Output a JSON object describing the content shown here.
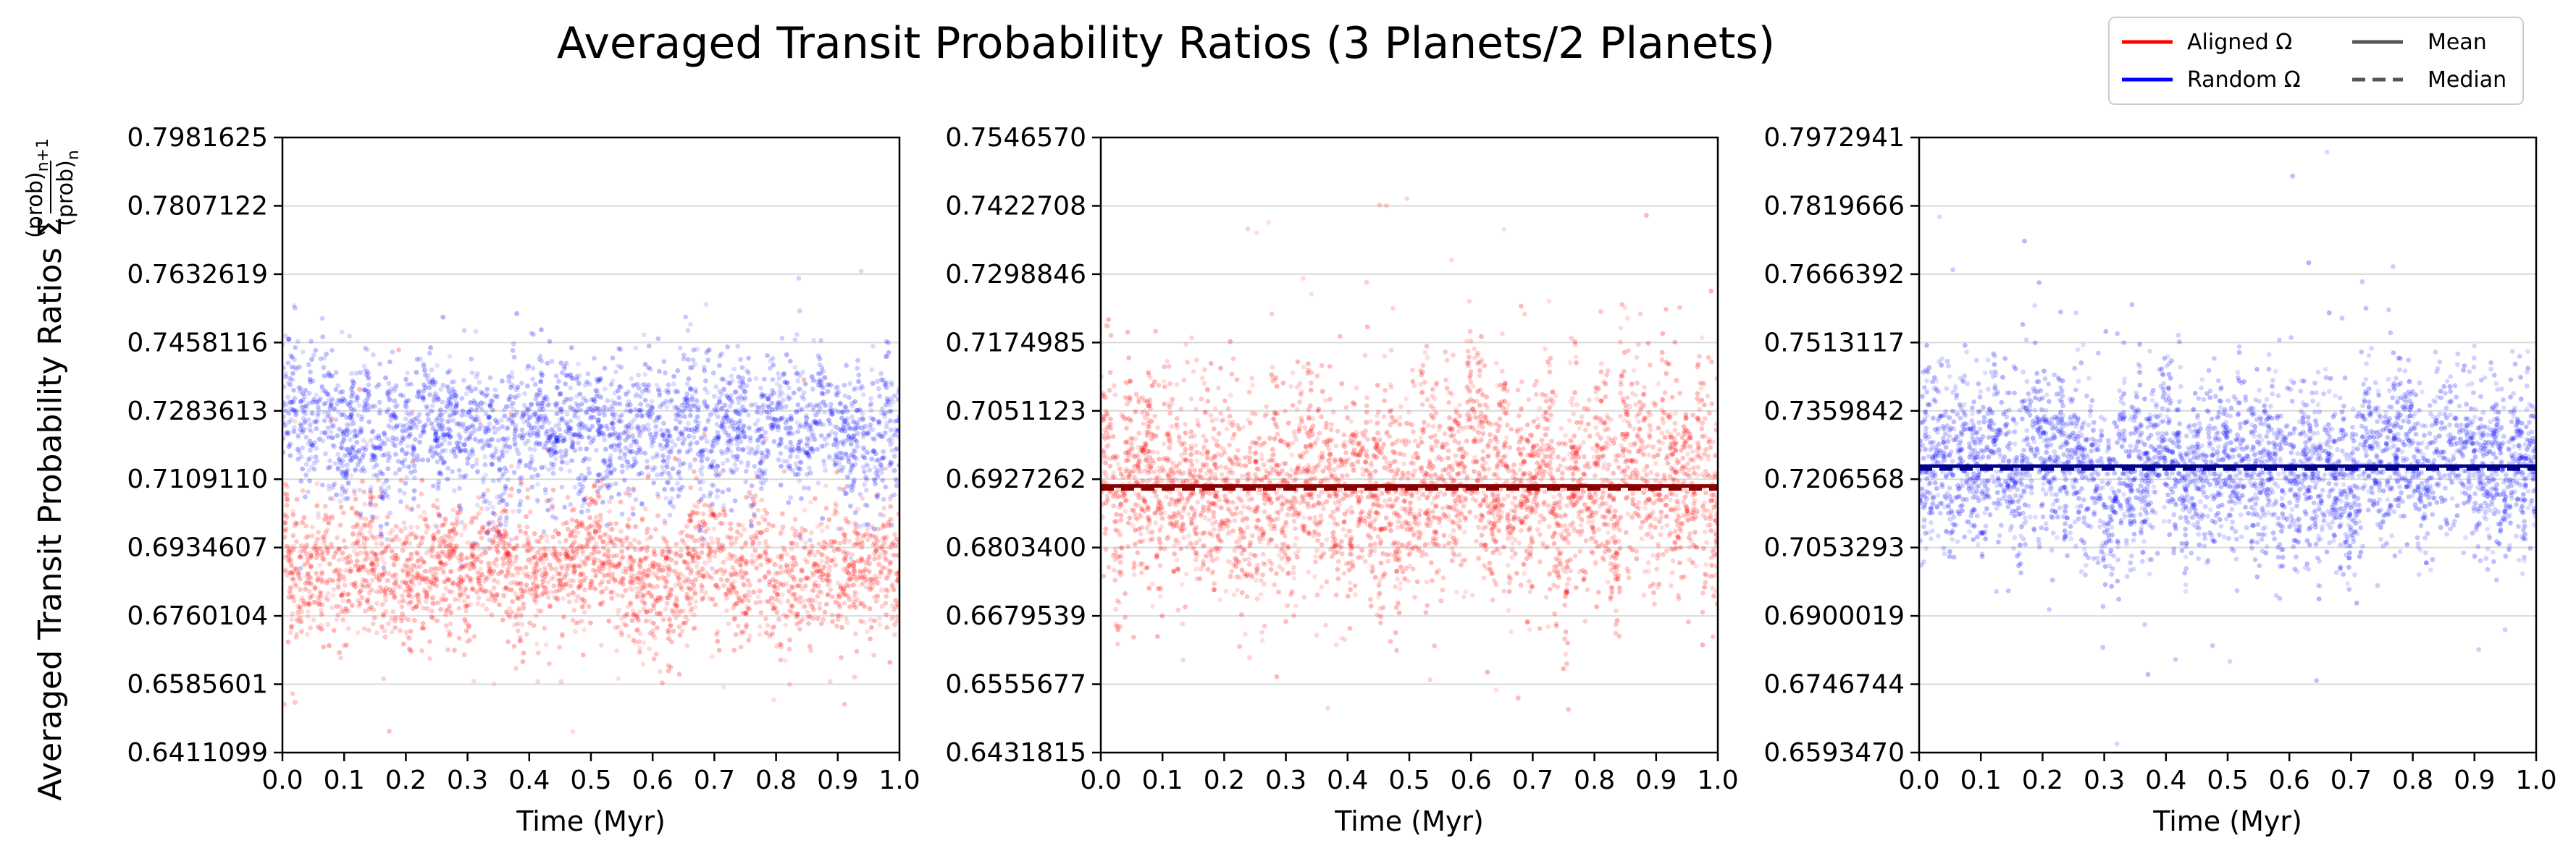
{
  "figure": {
    "title": "Averaged Transit Probability Ratios (3 Planets/2 Planets)",
    "ylabel_prefix": "Averaged Transit Probability Ratios Σ",
    "ylabel_numerator": "(prob)",
    "ylabel_numerator_sub": "n+1",
    "ylabel_denominator": "(prob)",
    "ylabel_denominator_sub": "n"
  },
  "legend": {
    "placement": "top-right",
    "entries": [
      {
        "label": "Aligned Ω",
        "color": "#ff0000",
        "style": "solid"
      },
      {
        "label": "Mean",
        "color": "#555555",
        "style": "solid"
      },
      {
        "label": "Random Ω",
        "color": "#0000ff",
        "style": "solid"
      },
      {
        "label": "Median",
        "color": "#555555",
        "style": "dashed"
      }
    ]
  },
  "colors": {
    "aligned": "#ff0000",
    "random": "#0000ff",
    "aligned_line": "#8b0000",
    "random_line": "#00008b",
    "grid": "#d9d9d9"
  },
  "chart_data": [
    {
      "type": "scatter",
      "xlabel": "Time (Myr)",
      "xlim": [
        0.0,
        1.0
      ],
      "xticks": [
        "0.0",
        "0.1",
        "0.2",
        "0.3",
        "0.4",
        "0.5",
        "0.6",
        "0.7",
        "0.8",
        "0.9",
        "1.0"
      ],
      "ylim": [
        0.6411099,
        0.7981625
      ],
      "yticks": [
        "0.6411099",
        "0.6585601",
        "0.6760104",
        "0.6934607",
        "0.7109110",
        "0.7283613",
        "0.7458116",
        "0.7632619",
        "0.7807122",
        "0.7981625"
      ],
      "grid": "horizontal",
      "series": [
        {
          "name": "Aligned Ω",
          "color": "#ff0000",
          "center": 0.688,
          "spread": 0.0085,
          "mean": 0.688,
          "median": 0.688,
          "n_points": 2600
        },
        {
          "name": "Random Ω",
          "color": "#0000ff",
          "center": 0.724,
          "spread": 0.0085,
          "mean": 0.724,
          "median": 0.724,
          "n_points": 2600
        }
      ],
      "show_mean_lines": false
    },
    {
      "type": "scatter",
      "xlabel": "Time (Myr)",
      "xlim": [
        0.0,
        1.0
      ],
      "xticks": [
        "0.0",
        "0.1",
        "0.2",
        "0.3",
        "0.4",
        "0.5",
        "0.6",
        "0.7",
        "0.8",
        "0.9",
        "1.0"
      ],
      "ylim": [
        0.6431815,
        0.754657
      ],
      "yticks": [
        "0.6431815",
        "0.6555677",
        "0.6679539",
        "0.6803400",
        "0.6927262",
        "0.7051123",
        "0.7174985",
        "0.7298846",
        "0.7422708",
        "0.7546570"
      ],
      "grid": "horizontal",
      "series": [
        {
          "name": "Aligned Ω",
          "color": "#ff0000",
          "center": 0.6915,
          "spread": 0.0095,
          "mean": 0.6915,
          "median": 0.6915,
          "n_points": 3600
        }
      ],
      "show_mean_lines": true
    },
    {
      "type": "scatter",
      "xlabel": "Time (Myr)",
      "xlim": [
        0.0,
        1.0
      ],
      "xticks": [
        "0.0",
        "0.1",
        "0.2",
        "0.3",
        "0.4",
        "0.5",
        "0.6",
        "0.7",
        "0.8",
        "0.9",
        "1.0"
      ],
      "ylim": [
        0.659347,
        0.7972941
      ],
      "yticks": [
        "0.6593470",
        "0.6746744",
        "0.6900019",
        "0.7053293",
        "0.7206568",
        "0.7359842",
        "0.7513117",
        "0.7666392",
        "0.7819666",
        "0.7972941"
      ],
      "grid": "horizontal",
      "series": [
        {
          "name": "Random Ω",
          "color": "#0000ff",
          "center": 0.7236,
          "spread": 0.0095,
          "mean": 0.7236,
          "median": 0.7236,
          "n_points": 3600
        }
      ],
      "show_mean_lines": true
    }
  ]
}
